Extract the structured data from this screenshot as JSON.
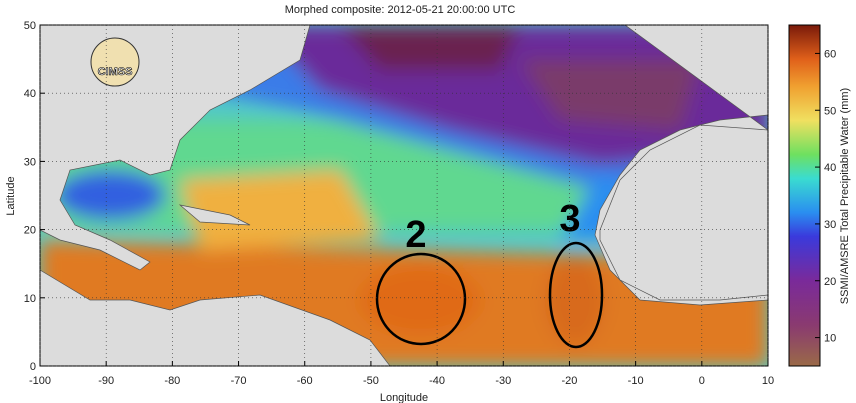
{
  "chart_data": {
    "type": "map",
    "title": "Morphed composite: 2012-05-21 20:00:00 UTC",
    "xlabel": "Longitude",
    "ylabel": "Latitude",
    "xlim": [
      -100,
      10
    ],
    "ylim": [
      0,
      50
    ],
    "xticks": [
      -100,
      -90,
      -80,
      -70,
      -60,
      -50,
      -40,
      -30,
      -20,
      -10,
      0,
      10
    ],
    "yticks": [
      0,
      10,
      20,
      30,
      40,
      50
    ],
    "grid": true,
    "colorbar": {
      "label": "SSMI/AMSRE Total Precipitable Water (mm)",
      "lim": [
        5,
        65
      ],
      "ticks": [
        10,
        20,
        30,
        40,
        50,
        60
      ]
    },
    "annotations": [
      "2",
      "3"
    ],
    "logo": "CIMSS"
  }
}
